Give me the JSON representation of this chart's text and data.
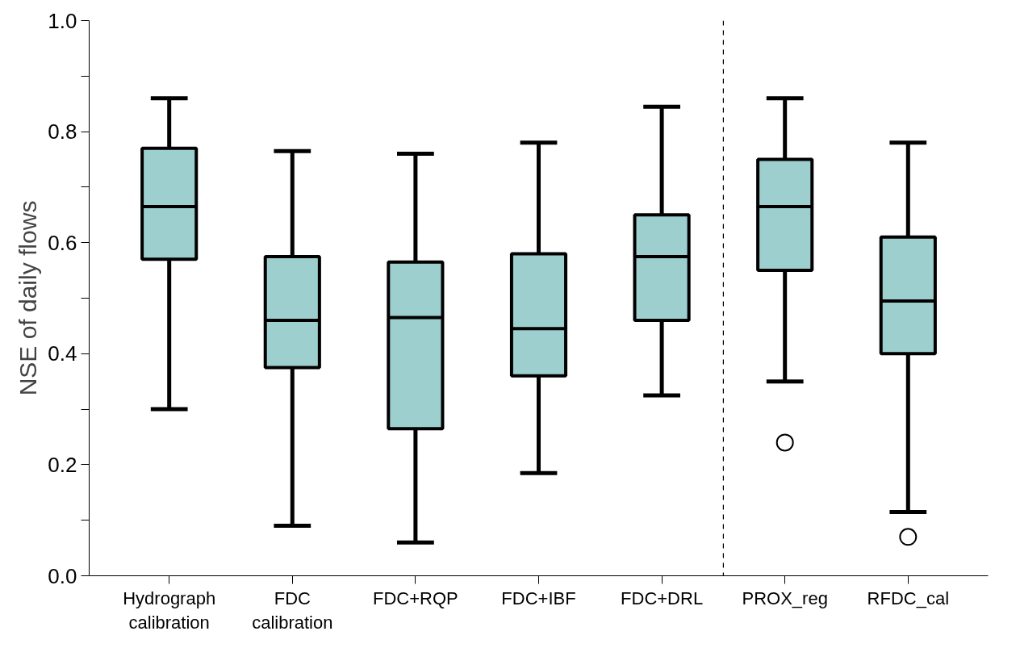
{
  "chart_data": {
    "type": "box",
    "ylabel": "NSE of daily flows",
    "categories": [
      "Hydrograph\ncalibration",
      "FDC\ncalibration",
      "FDC+RQP",
      "FDC+IBF",
      "FDC+DRL",
      "PROX_reg",
      "RFDC_cal"
    ],
    "series": [
      {
        "color": "#9dcfcf",
        "boxes": [
          {
            "low": 0.3,
            "q1": 0.57,
            "median": 0.665,
            "q3": 0.77,
            "high": 0.86
          },
          {
            "low": 0.09,
            "q1": 0.375,
            "median": 0.46,
            "q3": 0.575,
            "high": 0.765
          },
          {
            "low": 0.06,
            "q1": 0.265,
            "median": 0.465,
            "q3": 0.565,
            "high": 0.76
          },
          {
            "low": 0.185,
            "q1": 0.36,
            "median": 0.445,
            "q3": 0.58,
            "high": 0.78
          },
          {
            "low": 0.325,
            "q1": 0.46,
            "median": 0.575,
            "q3": 0.65,
            "high": 0.845
          },
          {
            "low": 0.35,
            "q1": 0.55,
            "median": 0.665,
            "q3": 0.75,
            "high": 0.86,
            "outliers": [
              0.24
            ]
          },
          {
            "low": 0.115,
            "q1": 0.4,
            "median": 0.495,
            "q3": 0.61,
            "high": 0.78,
            "outliers": [
              0.07
            ]
          }
        ]
      }
    ],
    "ylim": [
      0,
      1
    ],
    "yticks": [
      {
        "value": 0,
        "label": "0.0"
      },
      {
        "value": 0.1,
        "label": null
      },
      0.2,
      {
        "value": 0.3,
        "label": null
      },
      0.4,
      {
        "value": 0.5,
        "label": null
      },
      0.6,
      {
        "value": 0.7,
        "label": null
      },
      0.8,
      {
        "value": 0.9,
        "label": null
      },
      {
        "value": 1,
        "label": "1.0"
      }
    ],
    "grid": false
  }
}
